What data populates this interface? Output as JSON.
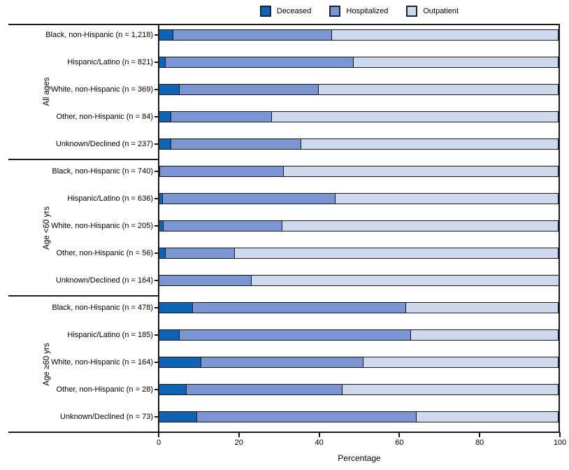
{
  "chart_data": {
    "type": "bar",
    "variant": "horizontal-stacked",
    "stack_order": [
      "Deceased",
      "Hospitalized",
      "Outpatient"
    ],
    "colors": {
      "Deceased": "#0f63b5",
      "Hospitalized": "#7b94d2",
      "Outpatient": "#cfd9ee"
    },
    "legend": [
      {
        "label": "Deceased",
        "color": "#0f63b5"
      },
      {
        "label": "Hospitalized",
        "color": "#7b94d2"
      },
      {
        "label": "Outpatient",
        "color": "#cfd9ee"
      }
    ],
    "legend_position": "top-center",
    "xlabel": "Percentage",
    "xlim": [
      0,
      100
    ],
    "x_ticks": [
      0,
      20,
      40,
      60,
      80,
      100
    ],
    "grid": false,
    "groups": [
      {
        "label": "All ages",
        "rows": [
          {
            "label": "Black, non-Hispanic (n = 1,218)",
            "values": {
              "Deceased": 3.6,
              "Hospitalized": 39.7,
              "Outpatient": 56.7
            }
          },
          {
            "label": "Hispanic/Latino (n = 821)",
            "values": {
              "Deceased": 1.8,
              "Hospitalized": 46.9,
              "Outpatient": 51.3
            }
          },
          {
            "label": "White, non-Hispanic (n = 369)",
            "values": {
              "Deceased": 5.2,
              "Hospitalized": 34.8,
              "Outpatient": 60.0
            }
          },
          {
            "label": "Other, non-Hispanic (n = 84)",
            "values": {
              "Deceased": 3.2,
              "Hospitalized": 25.2,
              "Outpatient": 71.6
            }
          },
          {
            "label": "Unknown/Declined (n = 237)",
            "values": {
              "Deceased": 3.1,
              "Hospitalized": 32.6,
              "Outpatient": 64.3
            }
          }
        ]
      },
      {
        "label": "Age <60 yrs",
        "rows": [
          {
            "label": "Black, non-Hispanic (n = 740)",
            "values": {
              "Deceased": 0.4,
              "Hospitalized": 31.0,
              "Outpatient": 68.6
            }
          },
          {
            "label": "Hispanic/Latino (n = 636)",
            "values": {
              "Deceased": 1.0,
              "Hospitalized": 43.2,
              "Outpatient": 55.8
            }
          },
          {
            "label": "White, non-Hispanic (n = 205)",
            "values": {
              "Deceased": 1.3,
              "Hospitalized": 29.7,
              "Outpatient": 69.0
            }
          },
          {
            "label": "Other, non-Hispanic (n = 56)",
            "values": {
              "Deceased": 1.7,
              "Hospitalized": 17.5,
              "Outpatient": 80.8
            }
          },
          {
            "label": "Unknown/Declined (n = 164)",
            "values": {
              "Deceased": 0.0,
              "Hospitalized": 23.2,
              "Outpatient": 76.8
            }
          }
        ]
      },
      {
        "label": "Age ≥60 yrs",
        "rows": [
          {
            "label": "Black, non-Hispanic (n = 478)",
            "values": {
              "Deceased": 8.6,
              "Hospitalized": 53.2,
              "Outpatient": 38.2
            }
          },
          {
            "label": "Hispanic/Latino (n = 185)",
            "values": {
              "Deceased": 5.2,
              "Hospitalized": 57.9,
              "Outpatient": 36.9
            }
          },
          {
            "label": "White, non-Hispanic (n = 164)",
            "values": {
              "Deceased": 10.7,
              "Hospitalized": 40.6,
              "Outpatient": 48.7
            }
          },
          {
            "label": "Other, non-Hispanic (n = 28)",
            "values": {
              "Deceased": 6.9,
              "Hospitalized": 39.1,
              "Outpatient": 54.0
            }
          },
          {
            "label": "Unknown/Declined (n = 73)",
            "values": {
              "Deceased": 9.5,
              "Hospitalized": 54.9,
              "Outpatient": 35.6
            }
          }
        ]
      }
    ]
  }
}
